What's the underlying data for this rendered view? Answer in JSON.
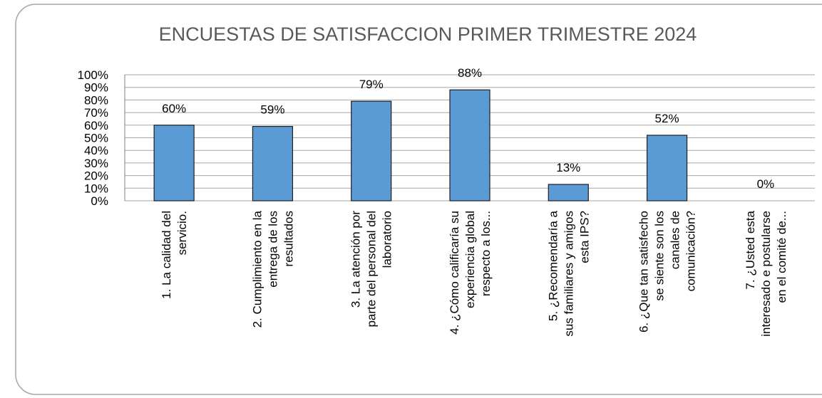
{
  "chart_data": {
    "type": "bar",
    "title": "ENCUESTAS DE SATISFACCION PRIMER TRIMESTRE 2024",
    "categories": [
      "1. La calidad del servicio.",
      "2. Cumplimiento en la entrega de los resultados",
      "3. La atención por parte del personal del laboratorio",
      "4.  ¿Cómo calificaría su experiencia global respecto a los...",
      "5. ¿Recomendaría a sus familiares y amigos esta IPS?",
      "6. ¿Que tan satisfecho se siente son los canales de comunicación?",
      "7. ¿Usted esta interesado e postularse en el comité de..."
    ],
    "values": [
      60,
      59,
      79,
      88,
      13,
      52,
      0
    ],
    "value_labels": [
      "60%",
      "59%",
      "79%",
      "88%",
      "13%",
      "52%",
      "0%"
    ],
    "color": "#5b9bd5",
    "ylim": [
      0,
      100
    ],
    "yticks": [
      {
        "value": 0,
        "label": "0%"
      },
      {
        "value": 10,
        "label": "10%"
      },
      {
        "value": 20,
        "label": "20%"
      },
      {
        "value": 30,
        "label": "30%"
      },
      {
        "value": 40,
        "label": "40%"
      },
      {
        "value": 50,
        "label": "50%"
      },
      {
        "value": 60,
        "label": "60%"
      },
      {
        "value": 70,
        "label": "70%"
      },
      {
        "value": 80,
        "label": "80%"
      },
      {
        "value": 90,
        "label": "90%"
      },
      {
        "value": 100,
        "label": "100%"
      }
    ],
    "grid": true
  }
}
